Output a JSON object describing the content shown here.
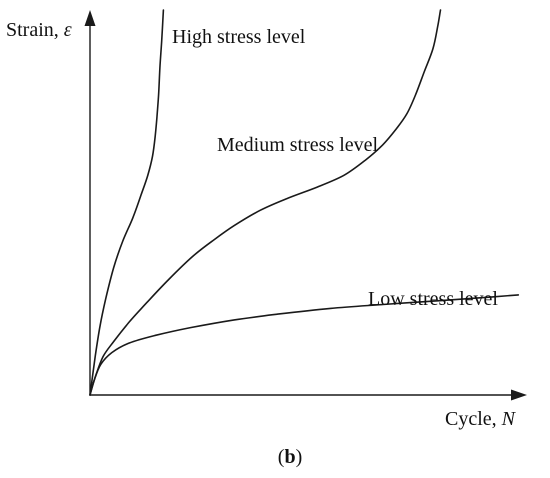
{
  "chart_data": {
    "type": "line",
    "x_axis_label": {
      "name": "Cycle, ",
      "symbol": "N"
    },
    "y_axis_label": {
      "name": "Strain, ",
      "symbol": "ε"
    },
    "caption": {
      "open": "(",
      "letter": "b",
      "close": ")"
    },
    "grid": false,
    "ticks": false,
    "xlim": [
      0,
      100
    ],
    "ylim": [
      0,
      100
    ],
    "series": [
      {
        "name": "High stress level",
        "points": [
          [
            0,
            0
          ],
          [
            1.2,
            10
          ],
          [
            2.3,
            18
          ],
          [
            3.6,
            25
          ],
          [
            5.4,
            33
          ],
          [
            7.5,
            40
          ],
          [
            9.8,
            46
          ],
          [
            11.7,
            52
          ],
          [
            13.2,
            57
          ],
          [
            14.3,
            62
          ],
          [
            14.9,
            67
          ],
          [
            15.3,
            72
          ],
          [
            15.7,
            78
          ],
          [
            16.0,
            85
          ],
          [
            16.4,
            92
          ],
          [
            16.8,
            100
          ]
        ]
      },
      {
        "name": "Medium stress level",
        "points": [
          [
            0,
            0
          ],
          [
            1.3,
            5
          ],
          [
            3,
            10
          ],
          [
            5.5,
            14
          ],
          [
            9,
            19
          ],
          [
            13,
            24
          ],
          [
            18,
            30
          ],
          [
            23.5,
            36
          ],
          [
            28,
            40
          ],
          [
            33,
            44
          ],
          [
            39,
            48
          ],
          [
            45,
            51
          ],
          [
            52,
            54
          ],
          [
            58,
            57
          ],
          [
            63,
            61
          ],
          [
            67,
            65
          ],
          [
            70,
            69
          ],
          [
            72.5,
            73
          ],
          [
            74.5,
            78
          ],
          [
            76.5,
            84
          ],
          [
            78.5,
            90
          ],
          [
            79.6,
            96
          ],
          [
            80.2,
            100
          ]
        ]
      },
      {
        "name": "Low stress level",
        "points": [
          [
            0,
            0
          ],
          [
            1,
            4
          ],
          [
            2.5,
            8
          ],
          [
            5,
            11
          ],
          [
            9,
            13.5
          ],
          [
            15,
            15.5
          ],
          [
            23,
            17.5
          ],
          [
            33,
            19.5
          ],
          [
            43,
            21
          ],
          [
            55,
            22.5
          ],
          [
            67,
            23.5
          ],
          [
            80,
            24.5
          ],
          [
            90,
            25.3
          ],
          [
            98,
            26
          ]
        ]
      }
    ]
  }
}
